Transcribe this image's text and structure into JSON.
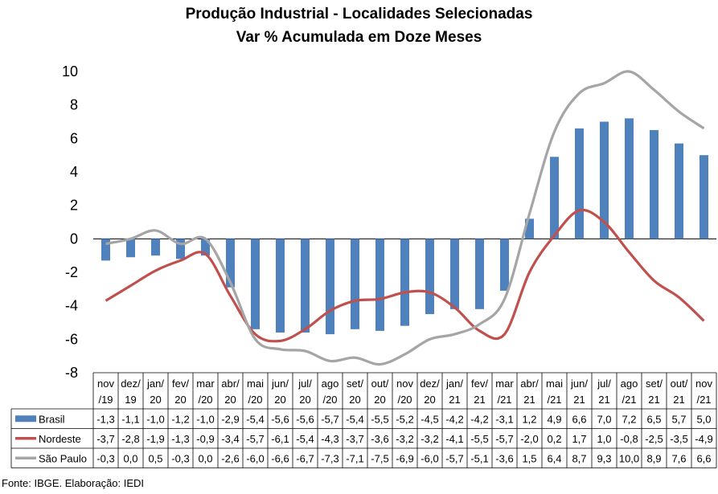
{
  "chart_data": {
    "type": "bar+line",
    "title": "Produção Industrial - Localidades Selecionadas",
    "subtitle": "Var % Acumulada em Doze Meses",
    "source": "Fonte: IBGE. Elaboração: IEDI",
    "ylim": [
      -8,
      10
    ],
    "yticks": [
      "10",
      "8",
      "6",
      "4",
      "2",
      "0",
      "-2",
      "-4",
      "-6",
      "-8"
    ],
    "ytick_values": [
      10,
      8,
      6,
      4,
      2,
      0,
      -2,
      -4,
      -6,
      -8
    ],
    "categories": [
      [
        "nov",
        "/19"
      ],
      [
        "dez/",
        "19"
      ],
      [
        "jan/",
        "20"
      ],
      [
        "fev/",
        "20"
      ],
      [
        "mar",
        "/20"
      ],
      [
        "abr/",
        "20"
      ],
      [
        "mai",
        "/20"
      ],
      [
        "jun/",
        "20"
      ],
      [
        "jul/",
        "20"
      ],
      [
        "ago",
        "/20"
      ],
      [
        "set/",
        "20"
      ],
      [
        "out/",
        "20"
      ],
      [
        "nov",
        "/20"
      ],
      [
        "dez/",
        "20"
      ],
      [
        "jan/",
        "21"
      ],
      [
        "fev/",
        "21"
      ],
      [
        "mar",
        "/21"
      ],
      [
        "abr/",
        "21"
      ],
      [
        "mai",
        "/21"
      ],
      [
        "jun/",
        "21"
      ],
      [
        "jul/",
        "21"
      ],
      [
        "ago",
        "/21"
      ],
      [
        "set/",
        "21"
      ],
      [
        "out/",
        "21"
      ],
      [
        "nov",
        "/21"
      ]
    ],
    "series": [
      {
        "name": "Brasil",
        "kind": "bar",
        "color": "#4f81bd",
        "values": [
          -1.3,
          -1.1,
          -1.0,
          -1.2,
          -1.0,
          -2.9,
          -5.4,
          -5.6,
          -5.6,
          -5.7,
          -5.4,
          -5.5,
          -5.2,
          -4.5,
          -4.2,
          -4.2,
          -3.1,
          1.2,
          4.9,
          6.6,
          7.0,
          7.2,
          6.5,
          5.7,
          5.0
        ],
        "labels": [
          "-1,3",
          "-1,1",
          "-1,0",
          "-1,2",
          "-1,0",
          "-2,9",
          "-5,4",
          "-5,6",
          "-5,6",
          "-5,7",
          "-5,4",
          "-5,5",
          "-5,2",
          "-4,5",
          "-4,2",
          "-4,2",
          "-3,1",
          "1,2",
          "4,9",
          "6,6",
          "7,0",
          "7,2",
          "6,5",
          "5,7",
          "5,0"
        ]
      },
      {
        "name": "Nordeste",
        "kind": "line",
        "color": "#c0504d",
        "values": [
          -3.7,
          -2.8,
          -1.9,
          -1.3,
          -0.9,
          -3.4,
          -5.7,
          -6.1,
          -5.4,
          -4.3,
          -3.7,
          -3.6,
          -3.2,
          -3.2,
          -4.1,
          -5.5,
          -5.7,
          -2.0,
          0.2,
          1.7,
          1.0,
          -0.8,
          -2.5,
          -3.5,
          -4.9
        ],
        "labels": [
          "-3,7",
          "-2,8",
          "-1,9",
          "-1,3",
          "-0,9",
          "-3,4",
          "-5,7",
          "-6,1",
          "-5,4",
          "-4,3",
          "-3,7",
          "-3,6",
          "-3,2",
          "-3,2",
          "-4,1",
          "-5,5",
          "-5,7",
          "-2,0",
          "0,2",
          "1,7",
          "1,0",
          "-0,8",
          "-2,5",
          "-3,5",
          "-4,9"
        ]
      },
      {
        "name": "São Paulo",
        "kind": "line",
        "color": "#a5a5a5",
        "values": [
          -0.3,
          0.0,
          0.5,
          -0.3,
          0.0,
          -2.6,
          -6.0,
          -6.6,
          -6.7,
          -7.3,
          -7.1,
          -7.5,
          -6.9,
          -6.0,
          -5.7,
          -5.1,
          -3.6,
          1.5,
          6.4,
          8.7,
          9.3,
          10.0,
          8.9,
          7.6,
          6.6
        ],
        "labels": [
          "-0,3",
          "0,0",
          "0,5",
          "-0,3",
          "0,0",
          "-2,6",
          "-6,0",
          "-6,6",
          "-6,7",
          "-7,3",
          "-7,1",
          "-7,5",
          "-6,9",
          "-6,0",
          "-5,7",
          "-5,1",
          "-3,6",
          "1,5",
          "6,4",
          "8,7",
          "9,3",
          "10,0",
          "8,9",
          "7,6",
          "6,6"
        ]
      }
    ]
  }
}
